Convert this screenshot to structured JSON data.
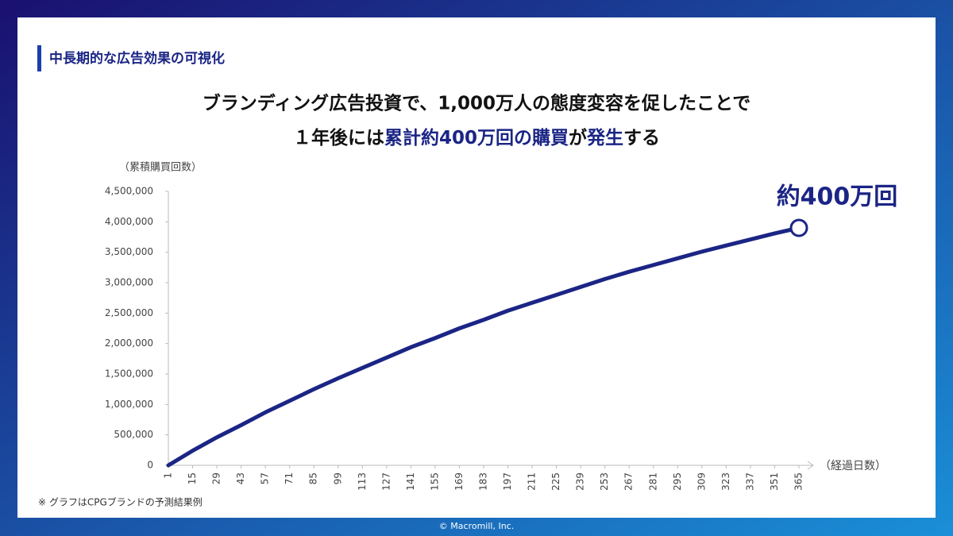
{
  "slide_title": "中長期的な広告効果の可視化",
  "headline": {
    "line1": "ブランディング広告投資で、1,000万人の態度変容を促したことで",
    "line2": [
      {
        "text": "１年後には",
        "emphasis": false
      },
      {
        "text": "累計約400万回の購買",
        "emphasis": true
      },
      {
        "text": "が",
        "emphasis": false
      },
      {
        "text": "発生",
        "emphasis": true
      },
      {
        "text": "する",
        "emphasis": false
      }
    ]
  },
  "note": "※ グラフはCPGブランドの予測結果例",
  "copyright": "© Macromill, Inc.",
  "chart_data": {
    "type": "line",
    "y_label": "（累積購買回数）",
    "x_label": "（経過日数）",
    "annotation": "約400万回",
    "x": [
      1,
      15,
      29,
      43,
      57,
      71,
      85,
      99,
      113,
      127,
      141,
      155,
      169,
      183,
      197,
      211,
      225,
      239,
      253,
      267,
      281,
      295,
      309,
      323,
      337,
      351,
      365
    ],
    "series": [
      {
        "name": "累積購買回数",
        "color": "#1b2585",
        "values": [
          0,
          240000,
          460000,
          660000,
          870000,
          1060000,
          1250000,
          1430000,
          1600000,
          1770000,
          1940000,
          2090000,
          2250000,
          2390000,
          2540000,
          2670000,
          2800000,
          2930000,
          3060000,
          3180000,
          3290000,
          3400000,
          3510000,
          3610000,
          3710000,
          3810000,
          3900000
        ]
      }
    ],
    "xlim": [
      1,
      365
    ],
    "xticks": [
      1,
      15,
      29,
      43,
      57,
      71,
      85,
      99,
      113,
      127,
      141,
      155,
      169,
      183,
      197,
      211,
      225,
      239,
      253,
      267,
      281,
      295,
      309,
      323,
      337,
      351,
      365
    ],
    "ylim": [
      0,
      4500000
    ],
    "yticks": [
      0,
      {
        "value": 500000,
        "label": "500,000"
      },
      {
        "value": 1000000,
        "label": "1,000,000"
      },
      {
        "value": 1500000,
        "label": "1,500,000"
      },
      {
        "value": 2000000,
        "label": "2,000,000"
      },
      {
        "value": 2500000,
        "label": "2,500,000"
      },
      {
        "value": 3000000,
        "label": "3,000,000"
      },
      {
        "value": 3500000,
        "label": "3,500,000"
      },
      {
        "value": 4000000,
        "label": "4,000,000"
      },
      {
        "value": 4500000,
        "label": "4,500,000"
      }
    ],
    "grid": false
  }
}
